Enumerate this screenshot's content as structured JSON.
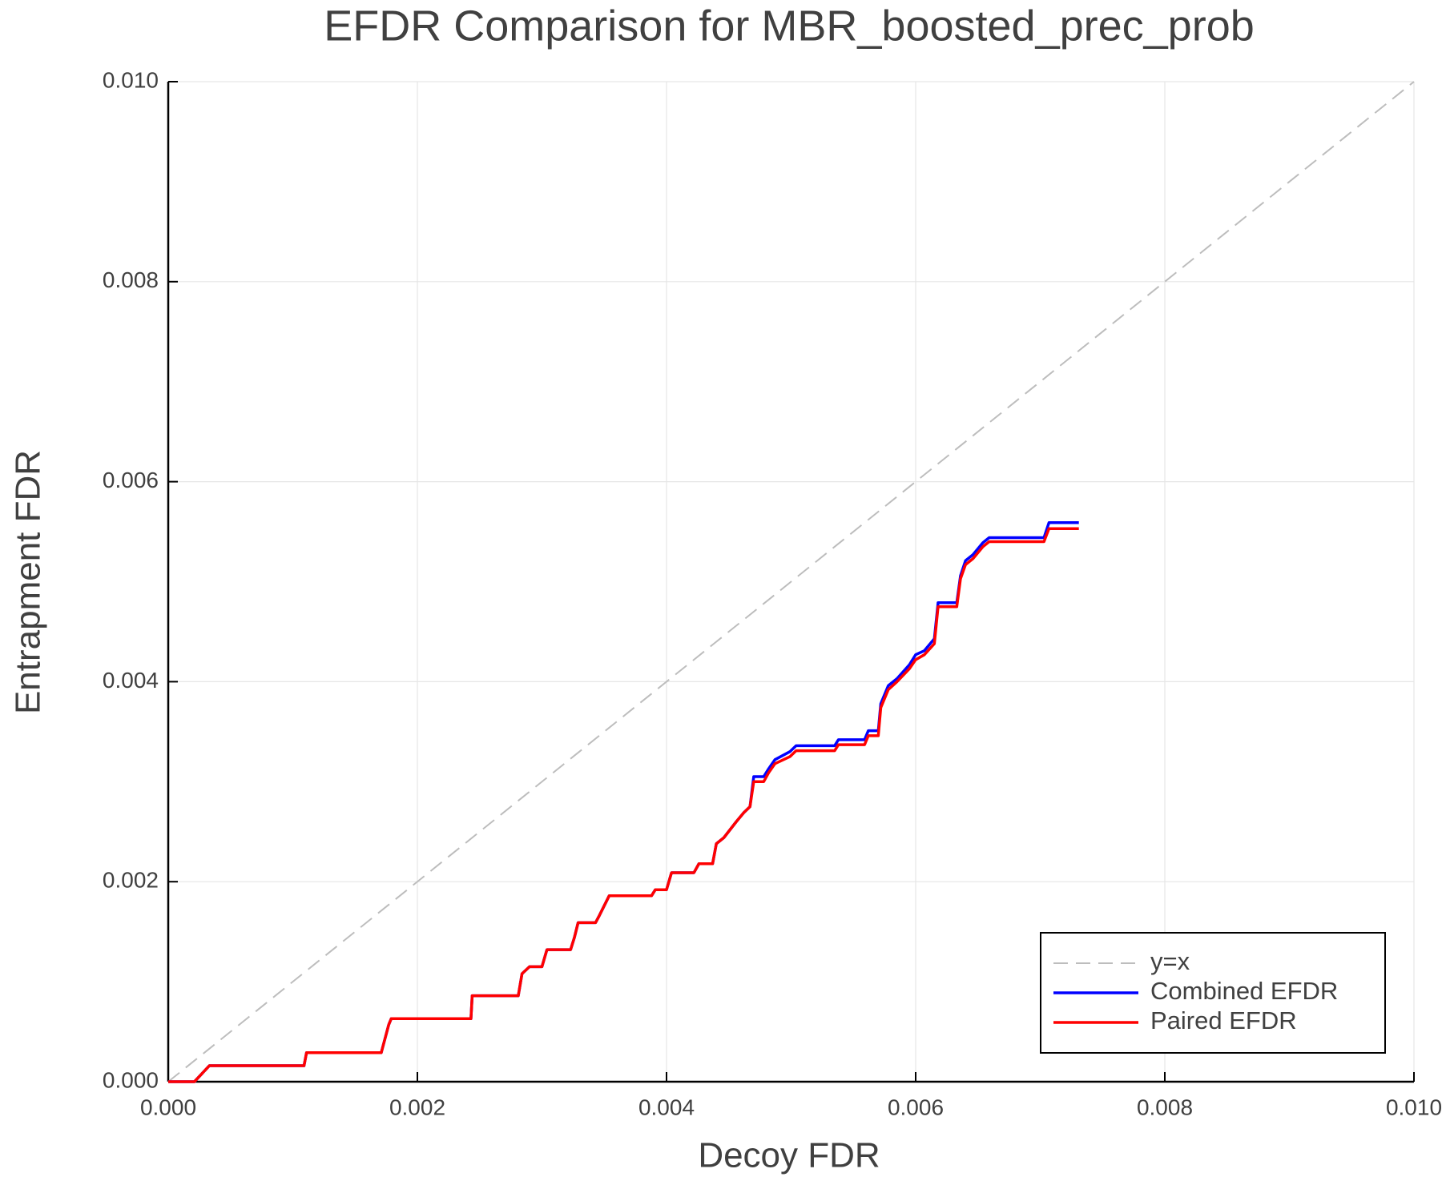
{
  "chart_data": {
    "type": "line",
    "title": "EFDR Comparison for MBR_boosted_prec_prob",
    "x_label": "Decoy FDR",
    "y_label": "Entrapment FDR",
    "xlim": [
      0,
      0.01
    ],
    "ylim": [
      0,
      0.01
    ],
    "xticks": [
      {
        "value": 0,
        "label": "0.000"
      },
      {
        "value": 0.002,
        "label": "0.002"
      },
      {
        "value": 0.004,
        "label": "0.004"
      },
      {
        "value": 0.006,
        "label": "0.006"
      },
      {
        "value": 0.008,
        "label": "0.008"
      },
      {
        "value": 0.01,
        "label": "0.010"
      }
    ],
    "yticks": [
      {
        "value": 0,
        "label": "0.000"
      },
      {
        "value": 0.002,
        "label": "0.002"
      },
      {
        "value": 0.004,
        "label": "0.004"
      },
      {
        "value": 0.006,
        "label": "0.006"
      },
      {
        "value": 0.008,
        "label": "0.008"
      },
      {
        "value": 0.01,
        "label": "0.010"
      }
    ],
    "grid": true,
    "legend": "bottom right",
    "x": [
      0,
      0.00021,
      0.00033,
      0.00109,
      0.00111,
      0.00171,
      0.00174,
      0.00177,
      0.00179,
      0.00243,
      0.00244,
      0.00281,
      0.00284,
      0.0029,
      0.003,
      0.00304,
      0.00323,
      0.00326,
      0.00329,
      0.00343,
      0.00346,
      0.00354,
      0.00388,
      0.00391,
      0.004,
      0.00404,
      0.00422,
      0.00426,
      0.00437,
      0.0044,
      0.00446,
      0.00451,
      0.00456,
      0.00462,
      0.00467,
      0.0047,
      0.00478,
      0.00482,
      0.00487,
      0.00499,
      0.00504,
      0.00535,
      0.00538,
      0.00559,
      0.00562,
      0.0057,
      0.00572,
      0.00578,
      0.00585,
      0.00595,
      0.006,
      0.00607,
      0.00615,
      0.00618,
      0.00633,
      0.00636,
      0.0064,
      0.00646,
      0.00654,
      0.00659,
      0.00703,
      0.00707,
      0.00731
    ],
    "series": [
      {
        "name": "y=x",
        "color": "#bdbdbd",
        "dashed": true,
        "x": [
          0,
          0.01
        ],
        "values": [
          0,
          0.01
        ]
      },
      {
        "name": "Combined EFDR",
        "color": "#0000ff",
        "values": [
          0,
          0,
          0.00016,
          0.00016,
          0.00029,
          0.00029,
          0.00043,
          0.00057,
          0.00063,
          0.00063,
          0.00086,
          0.00086,
          0.00108,
          0.00115,
          0.00115,
          0.00132,
          0.00132,
          0.00144,
          0.00159,
          0.00159,
          0.00166,
          0.00186,
          0.00186,
          0.00192,
          0.00192,
          0.00209,
          0.00209,
          0.00218,
          0.00218,
          0.00238,
          0.00244,
          0.00252,
          0.0026,
          0.00269,
          0.00275,
          0.00305,
          0.00305,
          0.00313,
          0.00322,
          0.0033,
          0.00336,
          0.00336,
          0.00342,
          0.00342,
          0.00351,
          0.00351,
          0.00378,
          0.00396,
          0.00403,
          0.00417,
          0.00427,
          0.00431,
          0.00443,
          0.00479,
          0.00479,
          0.00506,
          0.00521,
          0.00527,
          0.00539,
          0.00544,
          0.00544,
          0.00559,
          0.00559
        ]
      },
      {
        "name": "Paired EFDR",
        "color": "#ff0000",
        "values": [
          0,
          0,
          0.00016,
          0.00016,
          0.00029,
          0.00029,
          0.00043,
          0.00057,
          0.00063,
          0.00063,
          0.00086,
          0.00086,
          0.00108,
          0.00115,
          0.00115,
          0.00132,
          0.00132,
          0.00144,
          0.00159,
          0.00159,
          0.00166,
          0.00186,
          0.00186,
          0.00192,
          0.00192,
          0.00209,
          0.00209,
          0.00218,
          0.00218,
          0.00238,
          0.00244,
          0.00252,
          0.0026,
          0.00269,
          0.00275,
          0.003,
          0.003,
          0.00309,
          0.00318,
          0.00325,
          0.00331,
          0.00331,
          0.00337,
          0.00337,
          0.00346,
          0.00346,
          0.00374,
          0.00392,
          0.004,
          0.00413,
          0.00422,
          0.00427,
          0.00438,
          0.00475,
          0.00475,
          0.00503,
          0.00517,
          0.00523,
          0.00535,
          0.0054,
          0.0054,
          0.00553,
          0.00553
        ]
      }
    ]
  }
}
